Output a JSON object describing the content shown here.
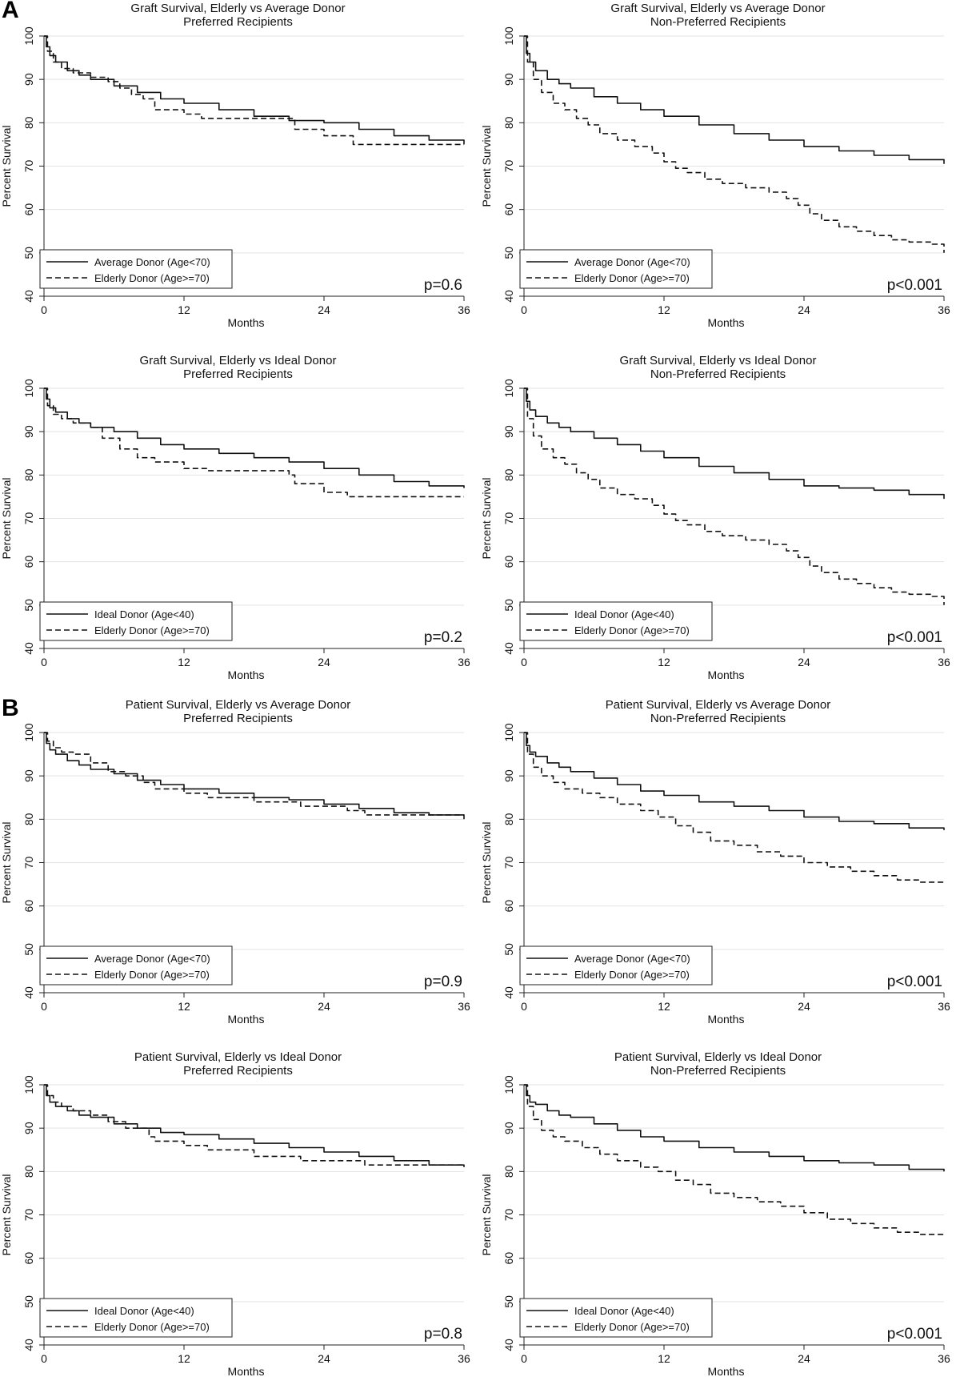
{
  "figure": {
    "panel_labels": [
      "A",
      "B"
    ]
  },
  "chart_data": [
    {
      "type": "line",
      "title": "Graft Survival, Elderly vs Average Donor",
      "subtitle": "Preferred Recipients",
      "xlabel": "Months",
      "ylabel": "Percent Survival",
      "xlim": [
        0,
        36
      ],
      "ylim": [
        40,
        100
      ],
      "xticks": [
        0,
        12,
        24,
        36
      ],
      "yticks": [
        40,
        50,
        60,
        70,
        80,
        90,
        100
      ],
      "grid": true,
      "legend": "bottom-left",
      "pvalue": "p=0.6",
      "series": [
        {
          "name": "Average Donor (Age<70)",
          "style": "solid",
          "x": [
            0,
            0.2,
            0.5,
            1,
            2,
            3,
            4,
            6,
            8,
            10,
            12,
            15,
            18,
            21,
            24,
            27,
            30,
            33,
            36
          ],
          "y": [
            100,
            97.5,
            95.5,
            94,
            92,
            91,
            90,
            88.5,
            87,
            85.5,
            84.5,
            83,
            81.5,
            80.5,
            80,
            78.5,
            77,
            76,
            75
          ]
        },
        {
          "name": "Elderly Donor (Age>=70)",
          "style": "dashed",
          "x": [
            0,
            0.3,
            0.8,
            1.5,
            2.5,
            4,
            5.5,
            6.5,
            7.5,
            8.5,
            9.5,
            12,
            13.5,
            21,
            21.5,
            23.5,
            24,
            25.5,
            26.5,
            36
          ],
          "y": [
            100,
            96.5,
            94,
            92.5,
            91.5,
            90.5,
            89.5,
            88,
            86.5,
            85.5,
            83,
            82,
            81,
            81,
            78.5,
            78.5,
            77,
            77,
            75,
            75
          ]
        }
      ]
    },
    {
      "type": "line",
      "title": "Graft Survival, Elderly vs Average Donor",
      "subtitle": "Non-Preferred Recipients",
      "xlabel": "Months",
      "ylabel": "Percent Survival",
      "xlim": [
        0,
        36
      ],
      "ylim": [
        40,
        100
      ],
      "xticks": [
        0,
        12,
        24,
        36
      ],
      "yticks": [
        40,
        50,
        60,
        70,
        80,
        90,
        100
      ],
      "grid": true,
      "legend": "bottom-left",
      "pvalue": "p<0.001",
      "series": [
        {
          "name": "Average Donor (Age<70)",
          "style": "solid",
          "x": [
            0,
            0.2,
            0.5,
            1,
            2,
            3,
            4,
            6,
            8,
            10,
            12,
            15,
            18,
            21,
            24,
            27,
            30,
            33,
            36
          ],
          "y": [
            100,
            96,
            94,
            92,
            90,
            89,
            88,
            86,
            84.5,
            83,
            81.5,
            79.5,
            77.5,
            76,
            74.5,
            73.5,
            72.5,
            71.5,
            70.5
          ]
        },
        {
          "name": "Elderly Donor (Age>=70)",
          "style": "dashed",
          "x": [
            0,
            0.3,
            0.8,
            1.5,
            2.5,
            3.5,
            4.5,
            5.5,
            6.5,
            8,
            9.5,
            11,
            12,
            13,
            14,
            15.5,
            17,
            19,
            21,
            22.5,
            23.5,
            24.5,
            25.5,
            27,
            28.5,
            30,
            31.5,
            33,
            35,
            36
          ],
          "y": [
            100,
            94,
            90,
            87,
            84.5,
            83,
            81,
            79.5,
            77.5,
            76,
            74.5,
            73,
            71,
            69.5,
            68.5,
            67,
            66,
            65,
            64,
            62.5,
            61,
            59,
            57.5,
            56,
            55,
            54,
            53,
            52.5,
            52,
            50
          ]
        }
      ]
    },
    {
      "type": "line",
      "title": "Graft Survival, Elderly vs Ideal Donor",
      "subtitle": "Preferred Recipients",
      "xlabel": "Months",
      "ylabel": "Percent Survival",
      "xlim": [
        0,
        36
      ],
      "ylim": [
        40,
        100
      ],
      "xticks": [
        0,
        12,
        24,
        36
      ],
      "yticks": [
        40,
        50,
        60,
        70,
        80,
        90,
        100
      ],
      "grid": true,
      "legend": "bottom-left",
      "pvalue": "p=0.2",
      "series": [
        {
          "name": "Ideal Donor (Age<40)",
          "style": "solid",
          "x": [
            0,
            0.2,
            0.5,
            1,
            2,
            3,
            4,
            6,
            8,
            10,
            12,
            15,
            18,
            21,
            24,
            27,
            30,
            33,
            36
          ],
          "y": [
            100,
            97.5,
            95.5,
            94.5,
            93,
            92,
            91,
            90,
            88.5,
            87,
            86,
            85,
            84,
            83,
            81.5,
            80,
            78.5,
            77.5,
            77
          ]
        },
        {
          "name": "Elderly Donor (Age>=70)",
          "style": "dashed",
          "x": [
            0,
            0.3,
            0.8,
            1.5,
            2.5,
            4,
            5,
            6.5,
            8,
            9.5,
            12,
            14,
            21,
            21.5,
            23.5,
            24,
            25,
            26,
            36
          ],
          "y": [
            100,
            96,
            94,
            93,
            92,
            91,
            88.5,
            86,
            84,
            83,
            81.5,
            81,
            80,
            78,
            78,
            76,
            76,
            75,
            75
          ]
        }
      ]
    },
    {
      "type": "line",
      "title": "Graft Survival, Elderly vs Ideal Donor",
      "subtitle": "Non-Preferred Recipients",
      "xlabel": "Months",
      "ylabel": "Percent Survival",
      "xlim": [
        0,
        36
      ],
      "ylim": [
        40,
        100
      ],
      "xticks": [
        0,
        12,
        24,
        36
      ],
      "yticks": [
        40,
        50,
        60,
        70,
        80,
        90,
        100
      ],
      "grid": true,
      "legend": "bottom-left",
      "pvalue": "p<0.001",
      "series": [
        {
          "name": "Ideal Donor (Age<40)",
          "style": "solid",
          "x": [
            0,
            0.2,
            0.5,
            1,
            2,
            3,
            4,
            6,
            8,
            10,
            12,
            15,
            18,
            21,
            24,
            27,
            30,
            33,
            36
          ],
          "y": [
            100,
            97,
            95,
            93.5,
            92,
            91,
            90,
            88.5,
            87,
            85.5,
            84,
            82,
            80.5,
            79,
            77.5,
            77,
            76.5,
            75.5,
            74.5
          ]
        },
        {
          "name": "Elderly Donor (Age>=70)",
          "style": "dashed",
          "x": [
            0,
            0.3,
            0.8,
            1.5,
            2.5,
            3.5,
            4.5,
            5.5,
            6.5,
            8,
            9.5,
            11,
            12,
            13,
            14,
            15.5,
            17,
            19,
            21,
            22.5,
            23.5,
            24.5,
            25.5,
            27,
            28.5,
            30,
            31.5,
            33,
            35,
            36
          ],
          "y": [
            100,
            93,
            89,
            86,
            84,
            82.5,
            80.5,
            79,
            77,
            75.5,
            74.5,
            73,
            71,
            69.5,
            68.5,
            67,
            66,
            65,
            64,
            62.5,
            61,
            59,
            57.5,
            56,
            55,
            54,
            53,
            52.5,
            52,
            50
          ]
        }
      ]
    },
    {
      "type": "line",
      "title": "Patient Survival, Elderly vs Average Donor",
      "subtitle": "Preferred Recipients",
      "xlabel": "Months",
      "ylabel": "Percent Survival",
      "xlim": [
        0,
        36
      ],
      "ylim": [
        40,
        100
      ],
      "xticks": [
        0,
        12,
        24,
        36
      ],
      "yticks": [
        40,
        50,
        60,
        70,
        80,
        90,
        100
      ],
      "grid": true,
      "legend": "bottom-left",
      "pvalue": "p=0.9",
      "series": [
        {
          "name": "Average Donor (Age<70)",
          "style": "solid",
          "x": [
            0,
            0.2,
            0.5,
            1,
            2,
            3,
            4,
            6,
            8,
            10,
            12,
            15,
            18,
            21,
            24,
            27,
            30,
            33,
            36
          ],
          "y": [
            100,
            97.5,
            96,
            95,
            93.5,
            92.5,
            91.5,
            90.5,
            89,
            88,
            87,
            86,
            85,
            84.5,
            83.5,
            82.5,
            81.5,
            81,
            80
          ]
        },
        {
          "name": "Elderly Donor (Age>=70)",
          "style": "dashed",
          "x": [
            0,
            0.3,
            0.8,
            1.5,
            2.5,
            4,
            5.5,
            7,
            8.5,
            9.5,
            12,
            14,
            18,
            21,
            22,
            25,
            26,
            27.5,
            36
          ],
          "y": [
            100,
            98,
            96.5,
            95.5,
            95,
            93,
            91,
            90,
            88.5,
            87,
            86,
            85,
            84,
            84,
            83,
            83,
            82,
            81,
            81
          ]
        }
      ]
    },
    {
      "type": "line",
      "title": "Patient Survival, Elderly vs Average Donor",
      "subtitle": "Non-Preferred Recipients",
      "xlabel": "Months",
      "ylabel": "Percent Survival",
      "xlim": [
        0,
        36
      ],
      "ylim": [
        40,
        100
      ],
      "xticks": [
        0,
        12,
        24,
        36
      ],
      "yticks": [
        40,
        50,
        60,
        70,
        80,
        90,
        100
      ],
      "grid": true,
      "legend": "bottom-left",
      "pvalue": "p<0.001",
      "series": [
        {
          "name": "Average Donor (Age<70)",
          "style": "solid",
          "x": [
            0,
            0.2,
            0.5,
            1,
            2,
            3,
            4,
            6,
            8,
            10,
            12,
            15,
            18,
            21,
            24,
            27,
            30,
            33,
            36
          ],
          "y": [
            100,
            97,
            95.5,
            94.5,
            93,
            92,
            91,
            89.5,
            88,
            86.5,
            85.5,
            84,
            83,
            82,
            80.5,
            79.5,
            79,
            78,
            77.5
          ]
        },
        {
          "name": "Elderly Donor (Age>=70)",
          "style": "dashed",
          "x": [
            0,
            0.3,
            0.8,
            1.5,
            2.5,
            3.5,
            5,
            6.5,
            8,
            10,
            11.5,
            13,
            14.5,
            16,
            18,
            20,
            22,
            24,
            26,
            28,
            30,
            32,
            34,
            36
          ],
          "y": [
            100,
            95,
            92,
            90,
            88.5,
            87,
            86,
            85,
            83.5,
            82,
            80.5,
            78.5,
            77,
            75,
            74,
            72.5,
            71.5,
            70,
            69,
            68,
            67,
            66,
            65.5,
            65
          ]
        }
      ]
    },
    {
      "type": "line",
      "title": "Patient Survival, Elderly vs Ideal Donor",
      "subtitle": "Preferred Recipients",
      "xlabel": "Months",
      "ylabel": "Percent Survival",
      "xlim": [
        0,
        36
      ],
      "ylim": [
        40,
        100
      ],
      "xticks": [
        0,
        12,
        24,
        36
      ],
      "yticks": [
        40,
        50,
        60,
        70,
        80,
        90,
        100
      ],
      "grid": true,
      "legend": "bottom-left",
      "pvalue": "p=0.8",
      "series": [
        {
          "name": "Ideal Donor (Age<40)",
          "style": "solid",
          "x": [
            0,
            0.2,
            0.5,
            1,
            2,
            3,
            4,
            6,
            8,
            10,
            12,
            15,
            18,
            21,
            24,
            27,
            30,
            33,
            36
          ],
          "y": [
            100,
            97.5,
            96,
            95,
            94,
            93,
            92.5,
            91,
            90,
            89,
            88.5,
            87.5,
            86.5,
            85.5,
            84.5,
            83.5,
            82.5,
            81.5,
            81
          ]
        },
        {
          "name": "Elderly Donor (Age>=70)",
          "style": "dashed",
          "x": [
            0,
            0.3,
            0.8,
            1.5,
            2.5,
            4,
            5.5,
            7,
            9,
            9.5,
            12,
            14,
            18,
            21,
            22,
            26,
            27.5,
            36
          ],
          "y": [
            100,
            97.5,
            96,
            95,
            94,
            93,
            91.5,
            90,
            88,
            87,
            86,
            85,
            83.5,
            83.5,
            82.5,
            82.5,
            81.5,
            81.5
          ]
        }
      ]
    },
    {
      "type": "line",
      "title": "Patient Survival, Elderly vs Ideal Donor",
      "subtitle": "Non-Preferred Recipients",
      "xlabel": "Months",
      "ylabel": "Percent Survival",
      "xlim": [
        0,
        36
      ],
      "ylim": [
        40,
        100
      ],
      "xticks": [
        0,
        12,
        24,
        36
      ],
      "yticks": [
        40,
        50,
        60,
        70,
        80,
        90,
        100
      ],
      "grid": true,
      "legend": "bottom-left",
      "pvalue": "p<0.001",
      "series": [
        {
          "name": "Ideal Donor (Age<40)",
          "style": "solid",
          "x": [
            0,
            0.2,
            0.5,
            1,
            2,
            3,
            4,
            6,
            8,
            10,
            12,
            15,
            18,
            21,
            24,
            27,
            30,
            33,
            36
          ],
          "y": [
            100,
            97.5,
            96,
            95.5,
            94,
            93,
            92.5,
            91,
            89.5,
            88,
            87,
            85.5,
            84.5,
            83.5,
            82.5,
            82,
            81.5,
            80.5,
            80
          ]
        },
        {
          "name": "Elderly Donor (Age>=70)",
          "style": "dashed",
          "x": [
            0,
            0.3,
            0.8,
            1.5,
            2.5,
            3.5,
            5,
            6.5,
            8,
            10,
            11.5,
            13,
            14.5,
            16,
            18,
            20,
            22,
            24,
            26,
            28,
            30,
            32,
            34,
            36
          ],
          "y": [
            100,
            95,
            92,
            89.5,
            88,
            87,
            85.5,
            84,
            82.5,
            81,
            80,
            78,
            77,
            75,
            74,
            73,
            72,
            70.5,
            69,
            68,
            67,
            66,
            65.5,
            65
          ]
        }
      ]
    }
  ]
}
